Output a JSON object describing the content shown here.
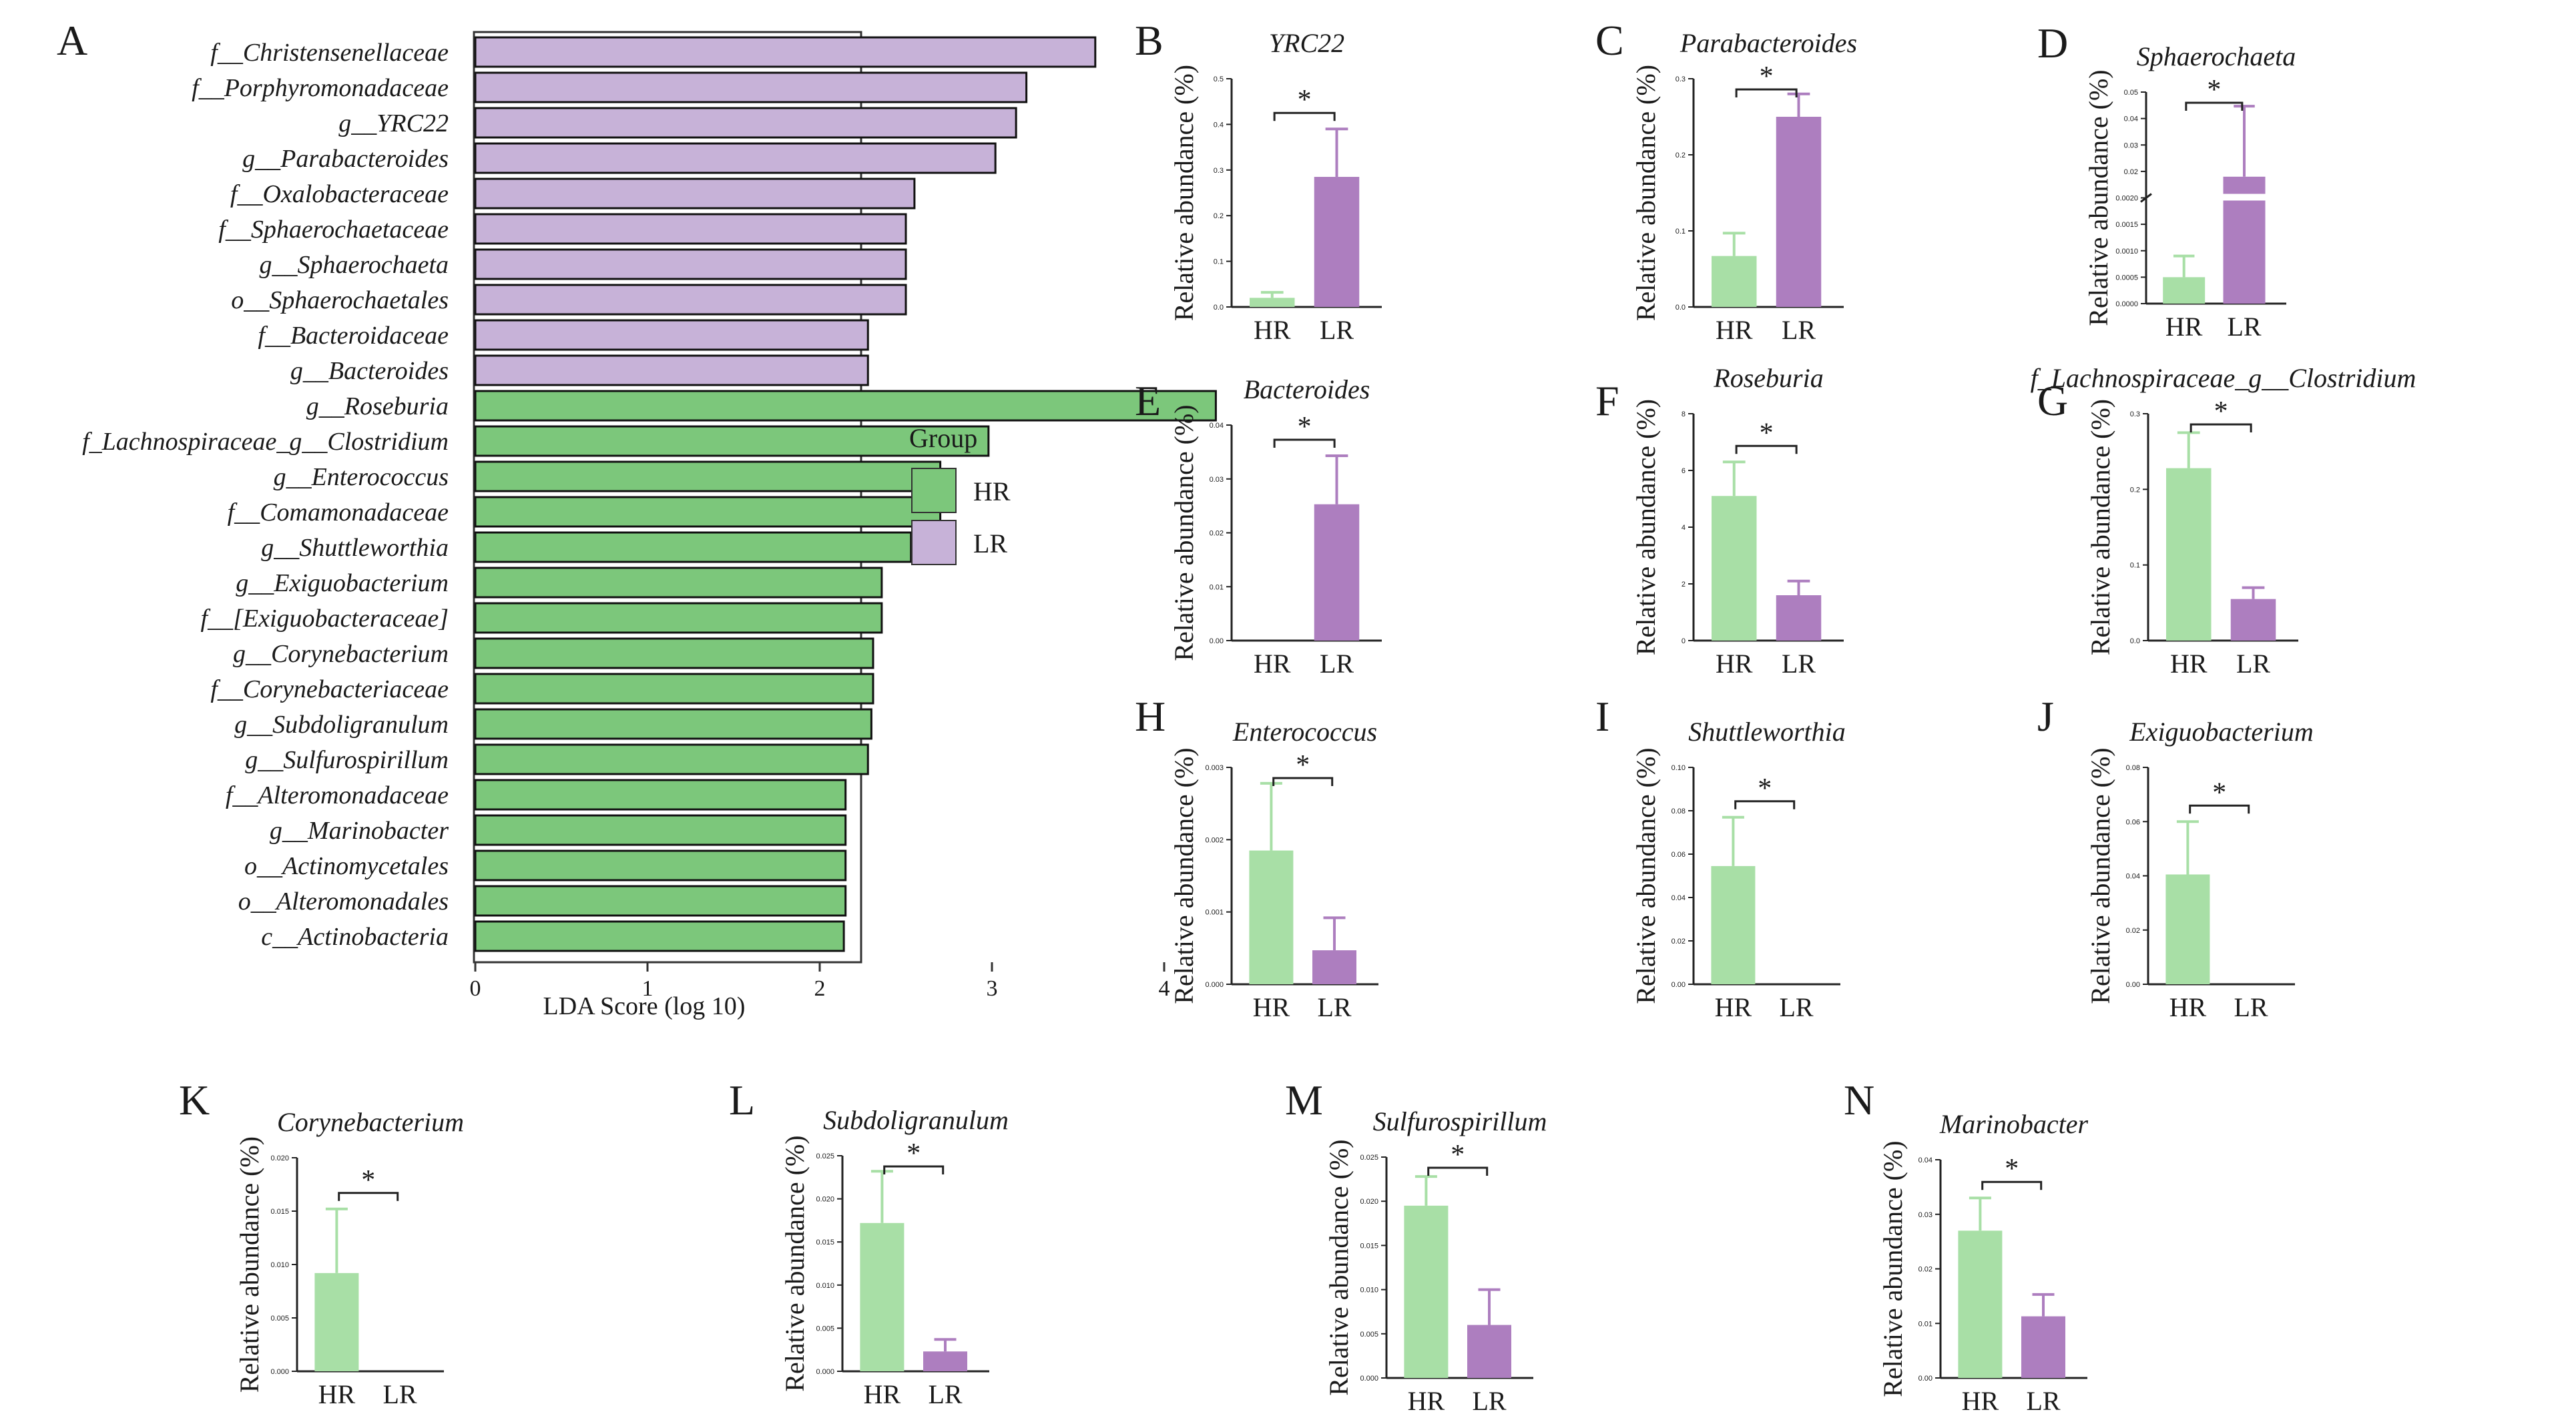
{
  "figure": {
    "colors": {
      "HR": "#7cc77b",
      "LR": "#c7b2d8",
      "HR_bar": "#a8dfa6",
      "LR_bar": "#ad7ebf"
    }
  },
  "chart_data": [
    {
      "id": "A",
      "type": "bar",
      "orientation": "horizontal",
      "xlabel": "LDA Score (log 10)",
      "xlim": [
        0,
        4.6
      ],
      "xticks": [
        "0",
        "1",
        "2",
        "3",
        "4"
      ],
      "categories": [
        "f__Christensenellaceae",
        "f__Porphyromonadaceae",
        "g__YRC22",
        "g__Parabacteroides",
        "f__Oxalobacteraceae",
        "f__Sphaerochaetaceae",
        "g__Sphaerochaeta",
        "o__Sphaerochaetales",
        "f__Bacteroidaceae",
        "g__Bacteroides",
        "g__Roseburia",
        "f_Lachnospiraceae_g__Clostridium",
        "g__Enterococcus",
        "f__Comamonadaceae",
        "g__Shuttleworthia",
        "g__Exiguobacterium",
        "f__[Exiguobacteraceae]",
        "g__Corynebacterium",
        "f__Corynebacteriaceae",
        "g__Subdoligranulum",
        "g__Sulfurospirillum",
        "f__Alteromonadaceae",
        "g__Marinobacter",
        "o__Actinomycetales",
        "o__Alteromonadales",
        "c__Actinobacteria"
      ],
      "values": [
        3.6,
        3.2,
        3.14,
        3.02,
        2.55,
        2.5,
        2.5,
        2.5,
        2.28,
        2.28,
        4.3,
        2.98,
        2.7,
        2.7,
        2.53,
        2.36,
        2.36,
        2.31,
        2.31,
        2.3,
        2.28,
        2.15,
        2.15,
        2.15,
        2.15,
        2.14
      ],
      "groups": [
        "LR",
        "LR",
        "LR",
        "LR",
        "LR",
        "LR",
        "LR",
        "LR",
        "LR",
        "LR",
        "HR",
        "HR",
        "HR",
        "HR",
        "HR",
        "HR",
        "HR",
        "HR",
        "HR",
        "HR",
        "HR",
        "HR",
        "HR",
        "HR",
        "HR",
        "HR"
      ],
      "legend": {
        "title": "Group",
        "entries": [
          "HR",
          "LR"
        ]
      }
    },
    {
      "id": "B",
      "type": "bar",
      "title": "YRC22",
      "ylabel": "Relative abundance (%)",
      "categories": [
        "HR",
        "LR"
      ],
      "values": [
        0.02,
        0.285
      ],
      "errors": [
        0.012,
        0.105
      ],
      "ylim": [
        0,
        0.5
      ],
      "yticks": [
        "0.0",
        "0.1",
        "0.2",
        "0.3",
        "0.4",
        "0.5"
      ],
      "significance": "*"
    },
    {
      "id": "C",
      "type": "bar",
      "title": "Parabacteroides",
      "ylabel": "Relative abundance (%)",
      "categories": [
        "HR",
        "LR"
      ],
      "values": [
        0.067,
        0.25
      ],
      "errors": [
        0.03,
        0.03
      ],
      "ylim": [
        0,
        0.3
      ],
      "yticks": [
        "0.0",
        "0.1",
        "0.2",
        "0.3"
      ],
      "significance": "*"
    },
    {
      "id": "D",
      "type": "bar",
      "title": "Sphaerochaeta",
      "ylabel": "Relative abundance (%)",
      "categories": [
        "HR",
        "LR"
      ],
      "values": [
        0.0005,
        0.026
      ],
      "errors": [
        0.0004,
        0.02
      ],
      "ylim": [
        0,
        0.05
      ],
      "yticks": [
        "0.0000",
        "0.0005",
        "0.0010",
        "0.0015",
        "0.0020",
        "0.02",
        "0.03",
        "0.04",
        "0.05"
      ],
      "significance": "*",
      "broken_axis": true
    },
    {
      "id": "E",
      "type": "bar",
      "title": "Bacteroides",
      "ylabel": "Relative abundance (%)",
      "categories": [
        "HR",
        "LR"
      ],
      "values": [
        0,
        0.0253
      ],
      "errors": [
        0,
        0.009
      ],
      "ylim": [
        0,
        0.04
      ],
      "yticks": [
        "0.00",
        "0.01",
        "0.02",
        "0.03",
        "0.04"
      ],
      "significance": "*"
    },
    {
      "id": "F",
      "type": "bar",
      "title": "Roseburia",
      "ylabel": "Relative abundance (%)",
      "categories": [
        "HR",
        "LR"
      ],
      "values": [
        5.1,
        1.6
      ],
      "errors": [
        1.2,
        0.5
      ],
      "ylim": [
        0,
        8
      ],
      "yticks": [
        "0",
        "2",
        "4",
        "6",
        "8"
      ],
      "significance": "*"
    },
    {
      "id": "G",
      "type": "bar",
      "title": "f_Lachnospiraceae_g__Clostridium",
      "ylabel": "Relative abundance (%)",
      "categories": [
        "HR",
        "LR"
      ],
      "values": [
        0.228,
        0.055
      ],
      "errors": [
        0.047,
        0.015
      ],
      "ylim": [
        0,
        0.3
      ],
      "yticks": [
        "0.0",
        "0.1",
        "0.2",
        "0.3"
      ],
      "significance": "*"
    },
    {
      "id": "H",
      "type": "bar",
      "title": "Enterococcus",
      "ylabel": "Relative abundance (%)",
      "categories": [
        "HR",
        "LR"
      ],
      "values": [
        0.00185,
        0.00047
      ],
      "errors": [
        0.00093,
        0.00045
      ],
      "ylim": [
        0,
        0.003
      ],
      "yticks": [
        "0.000",
        "0.001",
        "0.002",
        "0.003"
      ],
      "significance": "*"
    },
    {
      "id": "I",
      "type": "bar",
      "title": "Shuttleworthia",
      "ylabel": "Relative abundance (%)",
      "categories": [
        "HR",
        "LR"
      ],
      "values": [
        0.0545,
        0
      ],
      "errors": [
        0.0225,
        0
      ],
      "ylim": [
        0,
        0.1
      ],
      "yticks": [
        "0.00",
        "0.02",
        "0.04",
        "0.06",
        "0.08",
        "0.10"
      ],
      "significance": "*"
    },
    {
      "id": "J",
      "type": "bar",
      "title": "Exiguobacterium",
      "ylabel": "Relative abundance (%)",
      "categories": [
        "HR",
        "LR"
      ],
      "values": [
        0.0405,
        0
      ],
      "errors": [
        0.0195,
        0
      ],
      "ylim": [
        0,
        0.08
      ],
      "yticks": [
        "0.00",
        "0.02",
        "0.04",
        "0.06",
        "0.08"
      ],
      "significance": "*"
    },
    {
      "id": "K",
      "type": "bar",
      "title": "Corynebacterium",
      "ylabel": "Relative abundance (%)",
      "categories": [
        "HR",
        "LR"
      ],
      "values": [
        0.0092,
        0
      ],
      "errors": [
        0.006,
        0
      ],
      "ylim": [
        0,
        0.02
      ],
      "yticks": [
        "0.000",
        "0.005",
        "0.010",
        "0.015",
        "0.020"
      ],
      "significance": "*"
    },
    {
      "id": "L",
      "type": "bar",
      "title": "Subdoligranulum",
      "ylabel": "Relative abundance (%)",
      "categories": [
        "HR",
        "LR"
      ],
      "values": [
        0.0172,
        0.0023
      ],
      "errors": [
        0.006,
        0.0014
      ],
      "ylim": [
        0,
        0.025
      ],
      "yticks": [
        "0.000",
        "0.005",
        "0.010",
        "0.015",
        "0.020",
        "0.025"
      ],
      "significance": "*"
    },
    {
      "id": "M",
      "type": "bar",
      "title": "Sulfurospirillum",
      "ylabel": "Relative abundance (%)",
      "categories": [
        "HR",
        "LR"
      ],
      "values": [
        0.0195,
        0.006
      ],
      "errors": [
        0.0033,
        0.004
      ],
      "ylim": [
        0,
        0.025
      ],
      "yticks": [
        "0.000",
        "0.005",
        "0.010",
        "0.015",
        "0.020",
        "0.025"
      ],
      "significance": "*"
    },
    {
      "id": "N",
      "type": "bar",
      "title": "Marinobacter",
      "ylabel": "Relative abundance (%)",
      "categories": [
        "HR",
        "LR"
      ],
      "values": [
        0.027,
        0.0113
      ],
      "errors": [
        0.006,
        0.004
      ],
      "ylim": [
        0,
        0.04
      ],
      "yticks": [
        "0.00",
        "0.01",
        "0.02",
        "0.03",
        "0.04"
      ],
      "significance": "*"
    }
  ]
}
